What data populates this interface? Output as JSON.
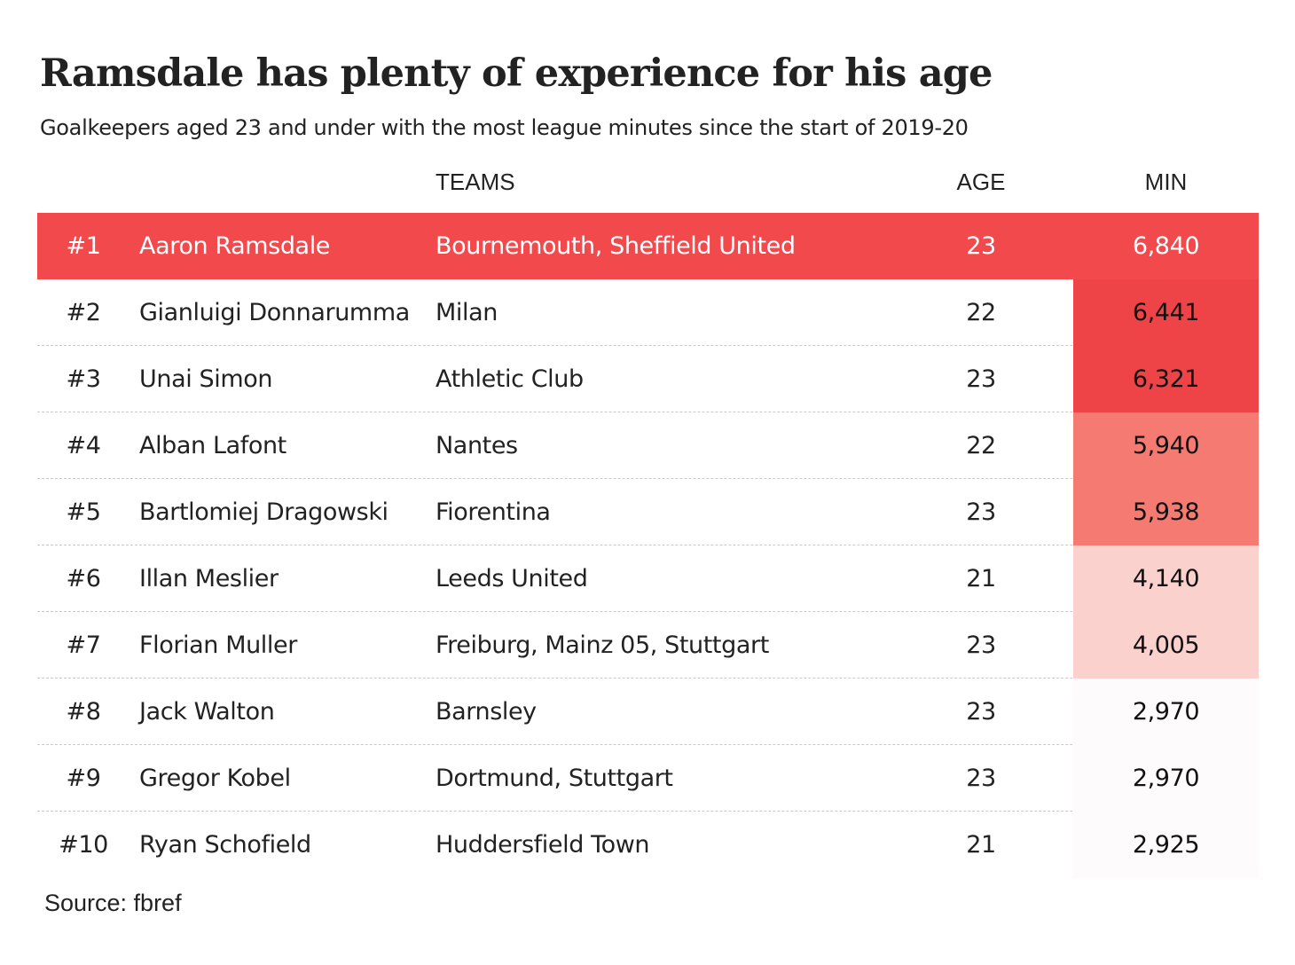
{
  "chart_data": {
    "type": "table",
    "title": "Ramsdale has plenty of experience for his age",
    "subtitle": "Goalkeepers aged 23 and under with the most league minutes since the start of 2019-20",
    "columns": {
      "teams": "TEAMS",
      "age": "AGE",
      "min": "MIN"
    },
    "rows": [
      {
        "rank": "#1",
        "name": "Aaron Ramsdale",
        "teams": "Bournemouth, Sheffield United",
        "age": "23",
        "min": "6,840",
        "min_value": 6840
      },
      {
        "rank": "#2",
        "name": "Gianluigi Donnarumma",
        "teams": "Milan",
        "age": "22",
        "min": "6,441",
        "min_value": 6441
      },
      {
        "rank": "#3",
        "name": "Unai Simon",
        "teams": "Athletic Club",
        "age": "23",
        "min": "6,321",
        "min_value": 6321
      },
      {
        "rank": "#4",
        "name": "Alban Lafont",
        "teams": "Nantes",
        "age": "22",
        "min": "5,940",
        "min_value": 5940
      },
      {
        "rank": "#5",
        "name": "Bartlomiej Dragowski",
        "teams": "Fiorentina",
        "age": "23",
        "min": "5,938",
        "min_value": 5938
      },
      {
        "rank": "#6",
        "name": "Illan Meslier",
        "teams": "Leeds United",
        "age": "21",
        "min": "4,140",
        "min_value": 4140
      },
      {
        "rank": "#7",
        "name": "Florian Muller",
        "teams": "Freiburg, Mainz 05, Stuttgart",
        "age": "23",
        "min": "4,005",
        "min_value": 4005
      },
      {
        "rank": "#8",
        "name": "Jack Walton",
        "teams": "Barnsley",
        "age": "23",
        "min": "2,970",
        "min_value": 2970
      },
      {
        "rank": "#9",
        "name": "Gregor Kobel",
        "teams": "Dortmund, Stuttgart",
        "age": "23",
        "min": "2,970",
        "min_value": 2970
      },
      {
        "rank": "#10",
        "name": "Ryan Schofield",
        "teams": "Huddersfield Town",
        "age": "21",
        "min": "2,925",
        "min_value": 2925
      }
    ],
    "highlight_row": 0,
    "colors": {
      "highlight": "#f2494d",
      "scale_high": "#ee4448",
      "scale_mid": "#f57a72",
      "scale_low": "#fbd1cd",
      "scale_min": "#fdfbfb"
    },
    "source": "Source: fbref"
  }
}
